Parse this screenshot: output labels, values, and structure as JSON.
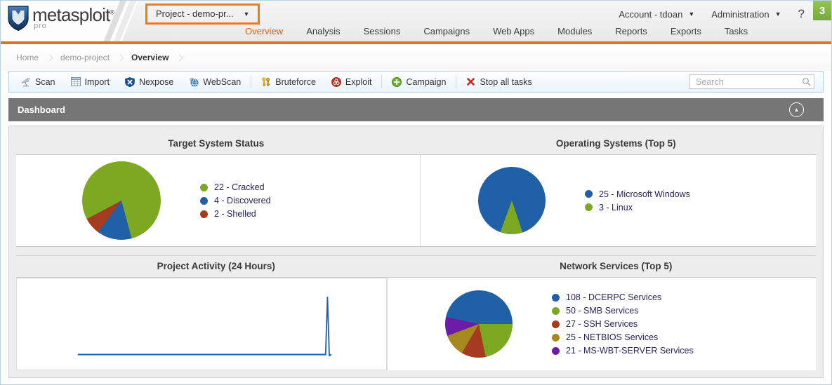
{
  "brand": {
    "name": "metasploit",
    "registered": "®",
    "tier": "pro"
  },
  "header": {
    "project_selector_label": "Project - demo-pr...",
    "account_label": "Account - tdoan",
    "administration_label": "Administration",
    "help_label": "?",
    "notification_count": "3",
    "tabs": [
      {
        "label": "Overview",
        "active": true
      },
      {
        "label": "Analysis",
        "active": false
      },
      {
        "label": "Sessions",
        "active": false
      },
      {
        "label": "Campaigns",
        "active": false
      },
      {
        "label": "Web Apps",
        "active": false
      },
      {
        "label": "Modules",
        "active": false
      },
      {
        "label": "Reports",
        "active": false
      },
      {
        "label": "Exports",
        "active": false
      },
      {
        "label": "Tasks",
        "active": false
      }
    ]
  },
  "breadcrumb": {
    "items": [
      "Home",
      "demo-project",
      "Overview"
    ]
  },
  "toolbar": {
    "buttons": [
      {
        "label": "Scan",
        "icon": "scan-icon"
      },
      {
        "label": "Import",
        "icon": "import-icon"
      },
      {
        "label": "Nexpose",
        "icon": "nexpose-shield-icon"
      },
      {
        "label": "WebScan",
        "icon": "webscan-globe-icon"
      },
      {
        "label": "Bruteforce",
        "icon": "bruteforce-keys-icon"
      },
      {
        "label": "Exploit",
        "icon": "exploit-biohazard-icon"
      },
      {
        "label": "Campaign",
        "icon": "campaign-plus-icon"
      },
      {
        "label": "Stop all tasks",
        "icon": "stop-x-icon"
      }
    ],
    "search_placeholder": "Search"
  },
  "dashboard": {
    "title": "Dashboard"
  },
  "chart_data": [
    {
      "type": "pie",
      "title": "Target System Status",
      "labels": [
        "Cracked",
        "Discovered",
        "Shelled"
      ],
      "values": [
        22,
        4,
        2
      ],
      "colors": [
        "#7da821",
        "#2060a7",
        "#a53c20"
      ],
      "start_angle_deg": 242,
      "legend_position": "right"
    },
    {
      "type": "pie",
      "title": "Operating Systems (Top 5)",
      "labels": [
        "Microsoft Windows",
        "Linux"
      ],
      "values": [
        25,
        3
      ],
      "colors": [
        "#2060a7",
        "#7da821"
      ],
      "start_angle_deg": 200,
      "legend_position": "right"
    },
    {
      "type": "line",
      "title": "Project Activity (24 Hours)",
      "x_range_hours": 24,
      "color": "#2563ae",
      "description": "Activity flat near zero from ~16% to ~83% of the window, single sharp spike near the right end; no axis tick labels visible",
      "points_norm": [
        [
          0.165,
          0.165
        ],
        [
          0.83,
          0.165
        ],
        [
          0.836,
          0.165
        ],
        [
          0.841,
          0.8
        ],
        [
          0.846,
          0.155
        ],
        [
          0.852,
          0.165
        ]
      ]
    },
    {
      "type": "pie",
      "title": "Network Services (Top 5)",
      "labels": [
        "DCERPC Services",
        "SMB Services",
        "SSH Services",
        "NETBIOS Services",
        "MS-WBT-SERVER Services"
      ],
      "values": [
        108,
        50,
        27,
        25,
        21
      ],
      "colors": [
        "#2060a7",
        "#7da821",
        "#a53c20",
        "#a5881e",
        "#6a1ca6"
      ],
      "start_angle_deg": 282,
      "legend_position": "right"
    }
  ],
  "colors": {
    "accent_orange": "#e8701a",
    "active_tab_orange": "#e65c0f",
    "highlight_box_orange": "#e87d1a",
    "badge_green": "#7cb342",
    "dashboard_bar_gray": "#767676",
    "legend_text_navy": "#26265c",
    "line_blue": "#2563ae"
  }
}
